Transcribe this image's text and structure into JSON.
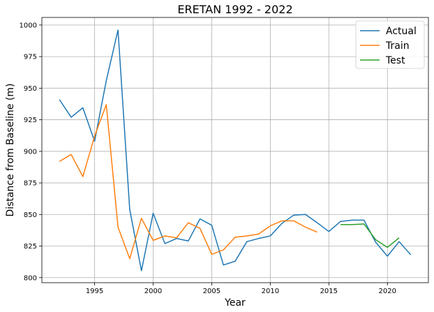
{
  "chart_data": {
    "type": "line",
    "title": "ERETAN 1992 - 2022",
    "xlabel": "Year",
    "ylabel": "Distance from Baseline (m)",
    "xlim": [
      1990.5,
      2023.5
    ],
    "ylim": [
      796,
      1006
    ],
    "xticks": [
      1995,
      2000,
      2005,
      2010,
      2015,
      2020
    ],
    "yticks": [
      800,
      825,
      850,
      875,
      900,
      925,
      950,
      975,
      1000
    ],
    "grid": true,
    "legend_position": "top-right",
    "series": [
      {
        "name": "Actual",
        "color": "#1f77b4",
        "x": [
          1992,
          1993,
          1994,
          1995,
          1996,
          1997,
          1998,
          1999,
          2000,
          2001,
          2002,
          2003,
          2004,
          2005,
          2006,
          2007,
          2008,
          2009,
          2010,
          2011,
          2012,
          2013,
          2014,
          2015,
          2016,
          2017,
          2018,
          2019,
          2020,
          2021,
          2022
        ],
        "y": [
          941,
          927,
          934.5,
          908,
          956,
          996,
          854,
          805.5,
          851,
          827,
          831,
          829,
          846.5,
          841.5,
          810,
          813,
          828.5,
          831,
          833,
          843,
          849.5,
          850,
          843.5,
          836.5,
          844.5,
          845.5,
          845.5,
          828,
          817,
          828.5,
          818
        ]
      },
      {
        "name": "Train",
        "color": "#ff7f0e",
        "x": [
          1992,
          1993,
          1994,
          1995,
          1996,
          1997,
          1998,
          1999,
          2000,
          2001,
          2002,
          2003,
          2004,
          2005,
          2006,
          2007,
          2008,
          2009,
          2010,
          2011,
          2012,
          2013,
          2014
        ],
        "y": [
          892,
          897.5,
          880,
          912,
          937,
          840,
          815,
          847,
          829.5,
          833,
          831.5,
          843.5,
          839,
          818.5,
          822,
          832,
          833,
          834.5,
          841,
          845,
          845,
          840,
          836
        ]
      },
      {
        "name": "Test",
        "color": "#2ca02c",
        "x": [
          2016,
          2017,
          2018,
          2019,
          2020,
          2021
        ],
        "y": [
          842,
          842,
          842.5,
          830,
          824,
          831.5
        ]
      }
    ]
  }
}
